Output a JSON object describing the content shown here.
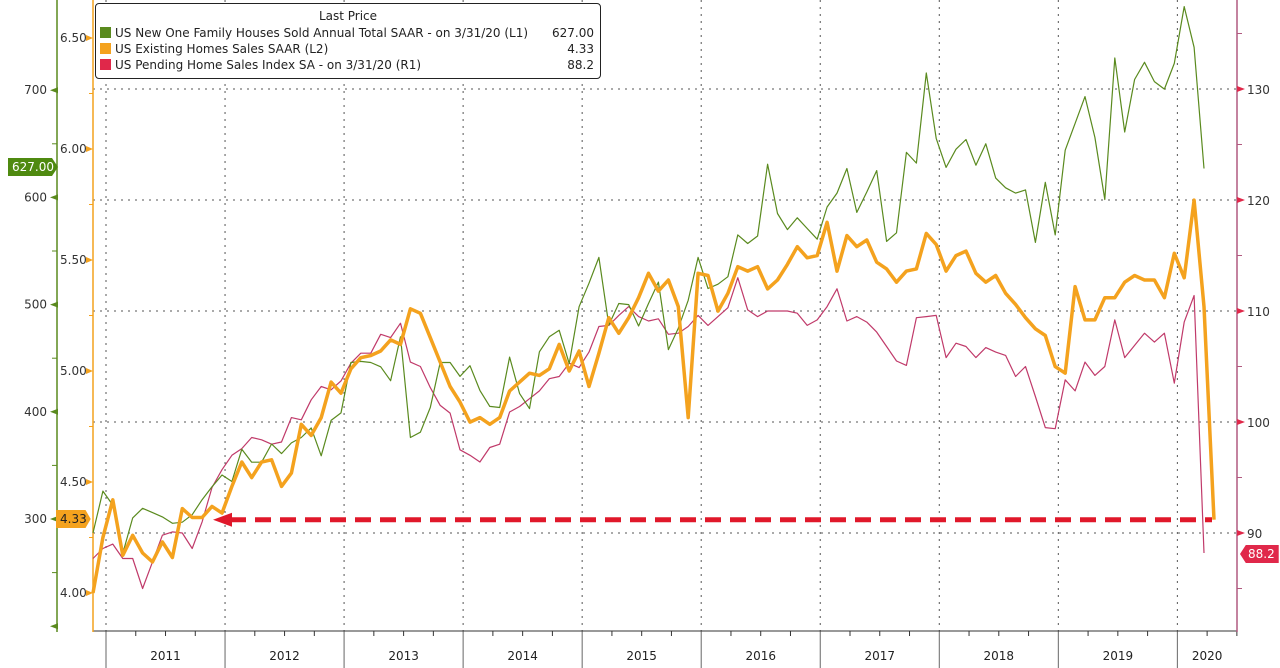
{
  "legend": {
    "title": "Last Price",
    "items": [
      {
        "label": "US New One Family Houses Sold Annual Total SAAR -  on 3/31/20  (L1)",
        "value": "627.00",
        "color": "#5a8a1e"
      },
      {
        "label": "US Existing Homes Sales SAAR  (L2)",
        "value": "4.33",
        "color": "#f4a21e"
      },
      {
        "label": "US Pending Home Sales Index SA -  on 3/31/20  (R1)",
        "value": "88.2",
        "color": "#e0284a"
      }
    ]
  },
  "tags": {
    "l1_last": "627.00",
    "l2_last": "4.33",
    "r1_last": "88.2"
  },
  "chart_data": {
    "type": "line",
    "title": "",
    "start_month": "2010-11",
    "frequency": "monthly",
    "x_tick_labels": [
      "2011",
      "2012",
      "2013",
      "2014",
      "2015",
      "2016",
      "2017",
      "2018",
      "2019",
      "2020"
    ],
    "axes": {
      "L1": {
        "ticks": [
          "300",
          "400",
          "500",
          "600",
          "700"
        ],
        "range": [
          200,
          785
        ],
        "color": "#5a8a1e"
      },
      "L2": {
        "ticks": [
          "4.00",
          "4.50",
          "5.00",
          "5.50",
          "6.00",
          "6.50"
        ],
        "range": [
          3.85,
          6.67
        ],
        "color": "#f4a21e"
      },
      "R1": {
        "ticks": [
          "90",
          "100",
          "110",
          "120",
          "130"
        ],
        "range": [
          83,
          138
        ],
        "color": "#c0305a"
      }
    },
    "grid": true,
    "legend_position": "top-left",
    "annotation": {
      "type": "dashed-arrow",
      "level_L2": 4.33,
      "color": "#e0182a"
    },
    "series": [
      {
        "name": "US New One Family Houses Sold Annual Total SAAR",
        "axis": "L1",
        "color": "#5a8a1e",
        "values": [
          287,
          326,
          313,
          268,
          301,
          310,
          306,
          302,
          296,
          297,
          304,
          318,
          330,
          341,
          335,
          365,
          353,
          353,
          370,
          361,
          371,
          376,
          385,
          359,
          392,
          399,
          446,
          447,
          446,
          442,
          429,
          470,
          376,
          381,
          404,
          446,
          446,
          433,
          443,
          420,
          405,
          404,
          451,
          417,
          403,
          456,
          470,
          476,
          445,
          498,
          520,
          544,
          481,
          501,
          500,
          480,
          501,
          521,
          458,
          478,
          504,
          544,
          515,
          519,
          526,
          565,
          557,
          564,
          631,
          585,
          570,
          581,
          571,
          561,
          591,
          604,
          627,
          586,
          605,
          625,
          559,
          567,
          642,
          632,
          716,
          655,
          628,
          645,
          654,
          630,
          650,
          618,
          609,
          604,
          607,
          558,
          614,
          565,
          644,
          669,
          694,
          656,
          598,
          730,
          661,
          710,
          726,
          708,
          701,
          725,
          778,
          740,
          627
        ]
      },
      {
        "name": "US Existing Homes Sales SAAR",
        "axis": "L2",
        "color": "#f4a21e",
        "values": [
          4.0,
          4.25,
          4.42,
          4.17,
          4.26,
          4.18,
          4.14,
          4.23,
          4.16,
          4.38,
          4.34,
          4.34,
          4.39,
          4.36,
          4.48,
          4.59,
          4.52,
          4.59,
          4.6,
          4.48,
          4.54,
          4.76,
          4.71,
          4.79,
          4.95,
          4.9,
          5.01,
          5.06,
          5.07,
          5.09,
          5.14,
          5.12,
          5.28,
          5.26,
          5.15,
          5.04,
          4.93,
          4.86,
          4.77,
          4.79,
          4.76,
          4.79,
          4.91,
          4.95,
          4.99,
          4.98,
          5.01,
          5.12,
          5.0,
          5.09,
          4.93,
          5.08,
          5.24,
          5.17,
          5.24,
          5.33,
          5.44,
          5.36,
          5.41,
          5.29,
          4.79,
          5.44,
          5.43,
          5.27,
          5.35,
          5.47,
          5.45,
          5.47,
          5.37,
          5.41,
          5.48,
          5.56,
          5.51,
          5.52,
          5.67,
          5.45,
          5.61,
          5.56,
          5.59,
          5.49,
          5.46,
          5.4,
          5.45,
          5.46,
          5.62,
          5.57,
          5.45,
          5.52,
          5.54,
          5.44,
          5.4,
          5.43,
          5.35,
          5.3,
          5.24,
          5.19,
          5.16,
          5.02,
          4.99,
          5.38,
          5.23,
          5.23,
          5.33,
          5.33,
          5.4,
          5.43,
          5.41,
          5.41,
          5.33,
          5.53,
          5.42,
          5.77,
          5.29,
          4.33
        ]
      },
      {
        "name": "US Pending Home Sales Index SA",
        "axis": "R1",
        "color": "#c03a6a",
        "values": [
          87.7,
          88.6,
          89.0,
          87.7,
          87.7,
          85.0,
          87.4,
          89.8,
          90.1,
          90.0,
          88.6,
          91.0,
          94.1,
          95.7,
          97.0,
          97.6,
          98.6,
          98.4,
          98.0,
          98.2,
          100.4,
          100.2,
          102.0,
          103.2,
          102.9,
          103.7,
          105.3,
          106.2,
          106.2,
          107.9,
          107.6,
          108.9,
          105.4,
          105.0,
          103.1,
          101.5,
          100.8,
          97.5,
          97.0,
          96.4,
          97.7,
          98.0,
          100.9,
          101.4,
          102.1,
          102.8,
          103.9,
          104.1,
          105.3,
          104.9,
          106.3,
          108.6,
          108.7,
          109.6,
          110.4,
          109.5,
          109.1,
          109.3,
          107.9,
          108.0,
          108.6,
          109.6,
          108.7,
          109.5,
          110.3,
          113.0,
          110.1,
          109.5,
          110.0,
          110.0,
          110.0,
          109.8,
          108.7,
          109.2,
          110.4,
          112.0,
          109.1,
          109.5,
          109.0,
          108.1,
          106.8,
          105.5,
          105.1,
          109.4,
          109.5,
          109.6,
          105.8,
          107.1,
          106.8,
          105.8,
          106.7,
          106.3,
          106.0,
          104.1,
          105.0,
          102.3,
          99.5,
          99.4,
          103.8,
          102.8,
          105.4,
          104.2,
          105.0,
          109.2,
          105.8,
          106.9,
          108.0,
          107.2,
          108.0,
          103.5,
          109.0,
          111.4,
          88.2
        ]
      }
    ]
  }
}
